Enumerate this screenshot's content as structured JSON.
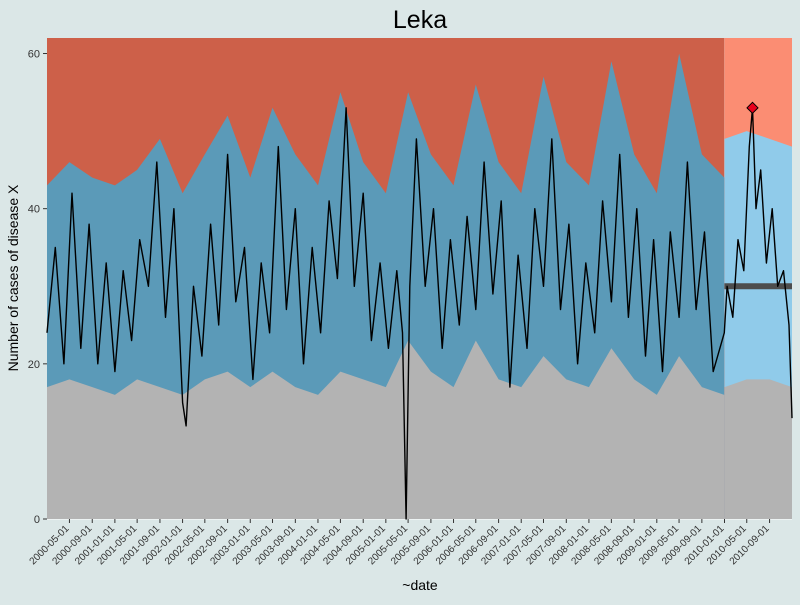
{
  "chart_data": {
    "type": "area",
    "title": "Leka",
    "xlabel": "~date",
    "ylabel": "Number of cases of disease X",
    "ylim": [
      0,
      62
    ],
    "y_ticks": [
      0,
      20,
      40,
      60
    ],
    "x_range": [
      "2000-01-01",
      "2010-12-31"
    ],
    "x_ticks": [
      "2000-05-01",
      "2000-09-01",
      "2001-01-01",
      "2001-05-01",
      "2001-09-01",
      "2002-01-01",
      "2002-05-01",
      "2002-09-01",
      "2003-01-01",
      "2003-05-01",
      "2003-09-01",
      "2004-01-01",
      "2004-05-01",
      "2004-09-01",
      "2005-01-01",
      "2005-05-01",
      "2005-09-01",
      "2006-01-01",
      "2006-05-01",
      "2006-09-01",
      "2007-01-01",
      "2007-05-01",
      "2007-09-01",
      "2008-01-01",
      "2008-05-01",
      "2008-09-01",
      "2009-01-01",
      "2009-05-01",
      "2009-09-01",
      "2010-01-01",
      "2010-05-01",
      "2010-09-01"
    ],
    "grid": true,
    "legend": "none",
    "training_period": {
      "start": "2000-01-01",
      "end": "2009-12-31"
    },
    "prediction_period": {
      "start": "2010-01-01",
      "end": "2010-12-31"
    },
    "series": [
      {
        "role": "baseline_band_lower",
        "points": [
          {
            "date": "2000-01-01",
            "value": 17
          },
          {
            "date": "2000-05-01",
            "value": 18
          },
          {
            "date": "2000-09-01",
            "value": 17
          },
          {
            "date": "2001-01-01",
            "value": 16
          },
          {
            "date": "2001-05-01",
            "value": 18
          },
          {
            "date": "2001-09-01",
            "value": 17
          },
          {
            "date": "2002-01-01",
            "value": 16
          },
          {
            "date": "2002-05-01",
            "value": 18
          },
          {
            "date": "2002-09-01",
            "value": 19
          },
          {
            "date": "2003-01-01",
            "value": 17
          },
          {
            "date": "2003-05-01",
            "value": 19
          },
          {
            "date": "2003-09-01",
            "value": 17
          },
          {
            "date": "2004-01-01",
            "value": 16
          },
          {
            "date": "2004-05-01",
            "value": 19
          },
          {
            "date": "2004-09-01",
            "value": 18
          },
          {
            "date": "2005-01-01",
            "value": 17
          },
          {
            "date": "2005-05-01",
            "value": 23
          },
          {
            "date": "2005-09-01",
            "value": 19
          },
          {
            "date": "2006-01-01",
            "value": 17
          },
          {
            "date": "2006-05-01",
            "value": 23
          },
          {
            "date": "2006-09-01",
            "value": 18
          },
          {
            "date": "2007-01-01",
            "value": 17
          },
          {
            "date": "2007-05-01",
            "value": 21
          },
          {
            "date": "2007-09-01",
            "value": 18
          },
          {
            "date": "2008-01-01",
            "value": 17
          },
          {
            "date": "2008-05-01",
            "value": 22
          },
          {
            "date": "2008-09-01",
            "value": 18
          },
          {
            "date": "2009-01-01",
            "value": 16
          },
          {
            "date": "2009-05-01",
            "value": 21
          },
          {
            "date": "2009-09-01",
            "value": 17
          },
          {
            "date": "2009-12-31",
            "value": 16
          }
        ]
      },
      {
        "role": "baseline_band_upper",
        "points": [
          {
            "date": "2000-01-01",
            "value": 43
          },
          {
            "date": "2000-05-01",
            "value": 46
          },
          {
            "date": "2000-09-01",
            "value": 44
          },
          {
            "date": "2001-01-01",
            "value": 43
          },
          {
            "date": "2001-05-01",
            "value": 45
          },
          {
            "date": "2001-09-01",
            "value": 49
          },
          {
            "date": "2002-01-01",
            "value": 42
          },
          {
            "date": "2002-05-01",
            "value": 47
          },
          {
            "date": "2002-09-01",
            "value": 52
          },
          {
            "date": "2003-01-01",
            "value": 44
          },
          {
            "date": "2003-05-01",
            "value": 53
          },
          {
            "date": "2003-09-01",
            "value": 47
          },
          {
            "date": "2004-01-01",
            "value": 43
          },
          {
            "date": "2004-05-01",
            "value": 55
          },
          {
            "date": "2004-09-01",
            "value": 46
          },
          {
            "date": "2005-01-01",
            "value": 42
          },
          {
            "date": "2005-05-01",
            "value": 55
          },
          {
            "date": "2005-09-01",
            "value": 47
          },
          {
            "date": "2006-01-01",
            "value": 43
          },
          {
            "date": "2006-05-01",
            "value": 56
          },
          {
            "date": "2006-09-01",
            "value": 46
          },
          {
            "date": "2007-01-01",
            "value": 42
          },
          {
            "date": "2007-05-01",
            "value": 57
          },
          {
            "date": "2007-09-01",
            "value": 46
          },
          {
            "date": "2008-01-01",
            "value": 43
          },
          {
            "date": "2008-05-01",
            "value": 59
          },
          {
            "date": "2008-09-01",
            "value": 47
          },
          {
            "date": "2009-01-01",
            "value": 42
          },
          {
            "date": "2009-05-01",
            "value": 60
          },
          {
            "date": "2009-09-01",
            "value": 47
          },
          {
            "date": "2009-12-31",
            "value": 44
          }
        ]
      },
      {
        "role": "prediction_band",
        "points": [
          {
            "date": "2010-01-01",
            "lower": 17,
            "upper": 49
          },
          {
            "date": "2010-05-01",
            "lower": 18,
            "upper": 50
          },
          {
            "date": "2010-09-01",
            "lower": 18,
            "upper": 49
          },
          {
            "date": "2010-12-31",
            "lower": 17,
            "upper": 48
          }
        ]
      },
      {
        "role": "observed_cases",
        "points": [
          {
            "date": "2000-01-01",
            "value": 24
          },
          {
            "date": "2000-02-15",
            "value": 35
          },
          {
            "date": "2000-04-01",
            "value": 20
          },
          {
            "date": "2000-05-15",
            "value": 42
          },
          {
            "date": "2000-07-01",
            "value": 22
          },
          {
            "date": "2000-08-15",
            "value": 38
          },
          {
            "date": "2000-10-01",
            "value": 20
          },
          {
            "date": "2000-11-15",
            "value": 33
          },
          {
            "date": "2001-01-01",
            "value": 19
          },
          {
            "date": "2001-02-15",
            "value": 32
          },
          {
            "date": "2001-04-01",
            "value": 23
          },
          {
            "date": "2001-05-15",
            "value": 36
          },
          {
            "date": "2001-07-01",
            "value": 30
          },
          {
            "date": "2001-08-15",
            "value": 46
          },
          {
            "date": "2001-10-01",
            "value": 26
          },
          {
            "date": "2001-11-15",
            "value": 40
          },
          {
            "date": "2002-01-01",
            "value": 15
          },
          {
            "date": "2002-01-20",
            "value": 12
          },
          {
            "date": "2002-03-01",
            "value": 30
          },
          {
            "date": "2002-04-15",
            "value": 21
          },
          {
            "date": "2002-06-01",
            "value": 38
          },
          {
            "date": "2002-07-15",
            "value": 25
          },
          {
            "date": "2002-09-01",
            "value": 47
          },
          {
            "date": "2002-10-15",
            "value": 28
          },
          {
            "date": "2002-12-01",
            "value": 35
          },
          {
            "date": "2003-01-15",
            "value": 18
          },
          {
            "date": "2003-03-01",
            "value": 33
          },
          {
            "date": "2003-04-15",
            "value": 24
          },
          {
            "date": "2003-06-01",
            "value": 48
          },
          {
            "date": "2003-07-15",
            "value": 27
          },
          {
            "date": "2003-09-01",
            "value": 40
          },
          {
            "date": "2003-10-15",
            "value": 20
          },
          {
            "date": "2003-12-01",
            "value": 35
          },
          {
            "date": "2004-01-15",
            "value": 24
          },
          {
            "date": "2004-03-01",
            "value": 41
          },
          {
            "date": "2004-04-15",
            "value": 31
          },
          {
            "date": "2004-06-01",
            "value": 53
          },
          {
            "date": "2004-07-15",
            "value": 30
          },
          {
            "date": "2004-09-01",
            "value": 42
          },
          {
            "date": "2004-10-15",
            "value": 23
          },
          {
            "date": "2004-12-01",
            "value": 33
          },
          {
            "date": "2005-01-15",
            "value": 22
          },
          {
            "date": "2005-03-01",
            "value": 32
          },
          {
            "date": "2005-04-01",
            "value": 24
          },
          {
            "date": "2005-04-20",
            "value": 0
          },
          {
            "date": "2005-05-10",
            "value": 30
          },
          {
            "date": "2005-06-15",
            "value": 49
          },
          {
            "date": "2005-08-01",
            "value": 30
          },
          {
            "date": "2005-09-15",
            "value": 40
          },
          {
            "date": "2005-11-01",
            "value": 22
          },
          {
            "date": "2005-12-15",
            "value": 36
          },
          {
            "date": "2006-02-01",
            "value": 25
          },
          {
            "date": "2006-03-15",
            "value": 39
          },
          {
            "date": "2006-05-01",
            "value": 27
          },
          {
            "date": "2006-06-15",
            "value": 46
          },
          {
            "date": "2006-08-01",
            "value": 29
          },
          {
            "date": "2006-09-15",
            "value": 41
          },
          {
            "date": "2006-11-01",
            "value": 17
          },
          {
            "date": "2006-12-15",
            "value": 34
          },
          {
            "date": "2007-02-01",
            "value": 22
          },
          {
            "date": "2007-03-15",
            "value": 40
          },
          {
            "date": "2007-05-01",
            "value": 30
          },
          {
            "date": "2007-06-15",
            "value": 49
          },
          {
            "date": "2007-08-01",
            "value": 27
          },
          {
            "date": "2007-09-15",
            "value": 38
          },
          {
            "date": "2007-11-01",
            "value": 20
          },
          {
            "date": "2007-12-15",
            "value": 33
          },
          {
            "date": "2008-02-01",
            "value": 24
          },
          {
            "date": "2008-03-15",
            "value": 41
          },
          {
            "date": "2008-05-01",
            "value": 28
          },
          {
            "date": "2008-06-15",
            "value": 47
          },
          {
            "date": "2008-08-01",
            "value": 26
          },
          {
            "date": "2008-09-15",
            "value": 40
          },
          {
            "date": "2008-11-01",
            "value": 21
          },
          {
            "date": "2008-12-15",
            "value": 36
          },
          {
            "date": "2009-02-01",
            "value": 19
          },
          {
            "date": "2009-03-15",
            "value": 37
          },
          {
            "date": "2009-05-01",
            "value": 26
          },
          {
            "date": "2009-06-15",
            "value": 46
          },
          {
            "date": "2009-08-01",
            "value": 27
          },
          {
            "date": "2009-09-15",
            "value": 37
          },
          {
            "date": "2009-11-01",
            "value": 19
          },
          {
            "date": "2009-12-31",
            "value": 24
          },
          {
            "date": "2010-01-15",
            "value": 30
          },
          {
            "date": "2010-02-15",
            "value": 26
          },
          {
            "date": "2010-03-15",
            "value": 36
          },
          {
            "date": "2010-04-15",
            "value": 32
          },
          {
            "date": "2010-05-15",
            "value": 48
          },
          {
            "date": "2010-06-01",
            "value": 53
          },
          {
            "date": "2010-06-20",
            "value": 40
          },
          {
            "date": "2010-07-15",
            "value": 45
          },
          {
            "date": "2010-08-15",
            "value": 33
          },
          {
            "date": "2010-09-15",
            "value": 40
          },
          {
            "date": "2010-10-15",
            "value": 30
          },
          {
            "date": "2010-11-15",
            "value": 32
          },
          {
            "date": "2010-12-15",
            "value": 25
          },
          {
            "date": "2010-12-31",
            "value": 13
          }
        ]
      },
      {
        "role": "prediction_mean",
        "points": [
          {
            "date": "2010-01-01",
            "value": 30
          },
          {
            "date": "2010-12-31",
            "value": 30
          }
        ]
      },
      {
        "role": "signal",
        "points": [
          {
            "date": "2010-06-01",
            "value": 53
          }
        ]
      }
    ],
    "colors": {
      "background": "#dbe7e7",
      "baseline_lower_area": "#b3b3b3",
      "baseline_band_area": "#5b9ab8",
      "baseline_upper_area": "#cd6049",
      "prediction_lower_area": "#b3b3b3",
      "prediction_band_area": "#90cbea",
      "prediction_upper_area": "#fb8d73",
      "observed_line": "#000000",
      "prediction_mean_line": "#4d4d4d",
      "signal_marker": "#e8001c",
      "gridline": "#ffffff",
      "axis_text": "#333333"
    }
  }
}
